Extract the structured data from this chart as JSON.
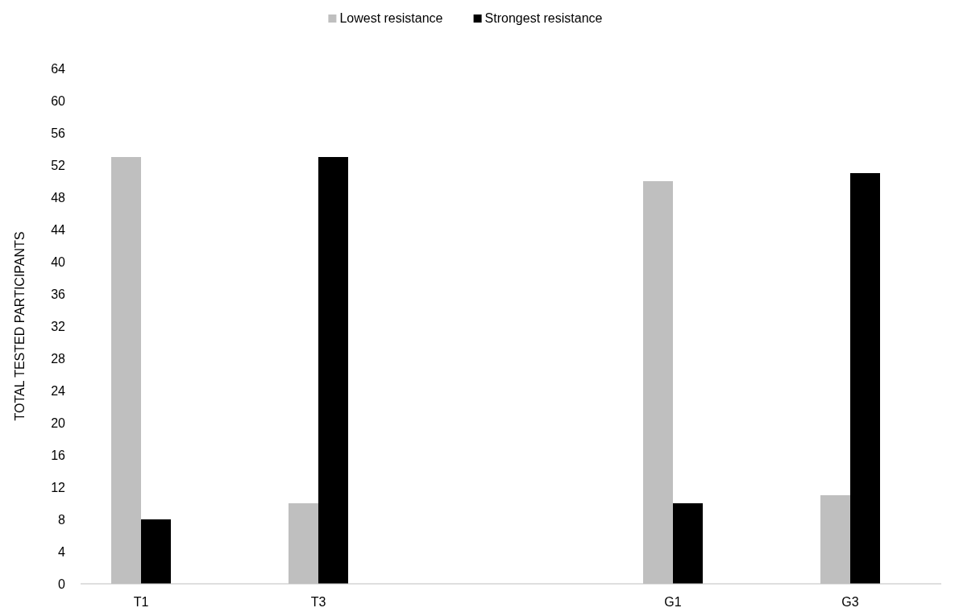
{
  "chart_data": {
    "type": "bar",
    "ylabel": "TOTAL TESTED PARTICIPANTS",
    "categories": [
      "T1",
      "T3",
      null,
      "G1",
      "G3"
    ],
    "series": [
      {
        "name": "Lowest resistance",
        "color": "#bfbfbf",
        "values": [
          53,
          10,
          null,
          50,
          11
        ]
      },
      {
        "name": "Strongest resistance",
        "color": "#000000",
        "values": [
          8,
          53,
          null,
          10,
          51
        ]
      }
    ],
    "ylim": [
      0,
      64
    ],
    "yticks": [
      0,
      4,
      8,
      12,
      16,
      20,
      24,
      28,
      32,
      36,
      40,
      44,
      48,
      52,
      56,
      60,
      64
    ],
    "grid": false,
    "legend": "top"
  }
}
